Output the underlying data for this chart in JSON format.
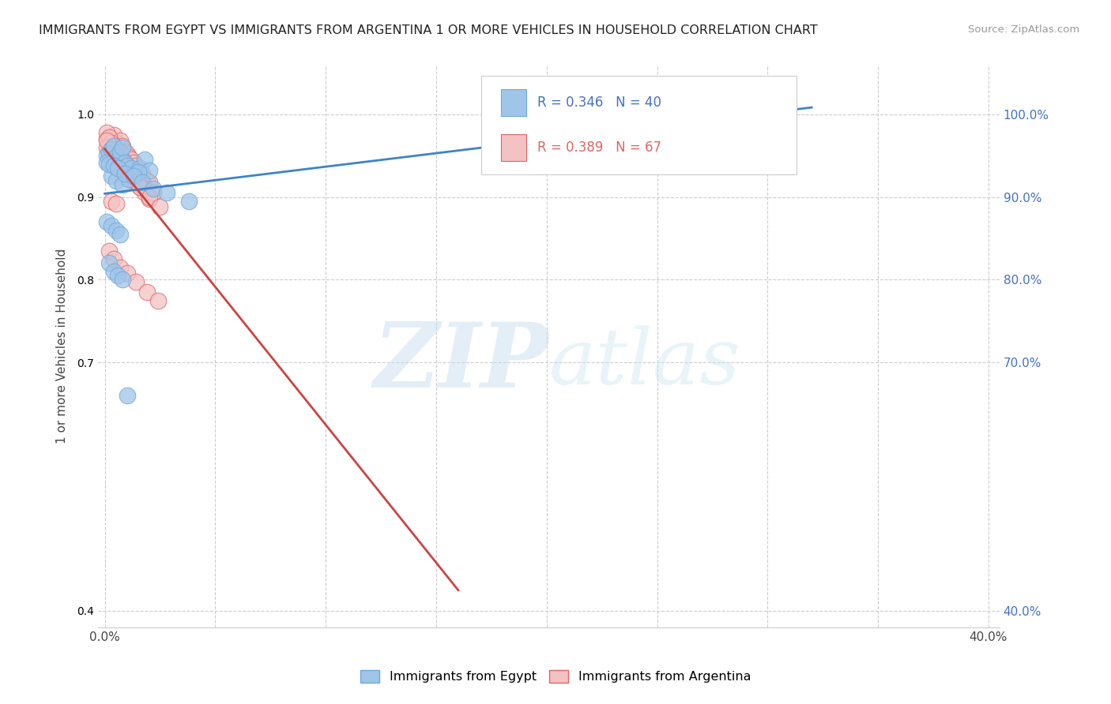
{
  "title": "IMMIGRANTS FROM EGYPT VS IMMIGRANTS FROM ARGENTINA 1 OR MORE VEHICLES IN HOUSEHOLD CORRELATION CHART",
  "source": "Source: ZipAtlas.com",
  "ylabel": "1 or more Vehicles in Household",
  "xlim": [
    -0.003,
    0.405
  ],
  "ylim": [
    0.38,
    1.06
  ],
  "xticks": [
    0.0,
    0.05,
    0.1,
    0.15,
    0.2,
    0.25,
    0.3,
    0.35,
    0.4
  ],
  "xticklabels": [
    "0.0%",
    "",
    "",
    "",
    "",
    "",
    "",
    "",
    "40.0%"
  ],
  "yticks": [
    0.4,
    0.7,
    0.8,
    0.9,
    1.0
  ],
  "yticklabels": [
    "40.0%",
    "70.0%",
    "80.0%",
    "90.0%",
    "100.0%"
  ],
  "egypt_color": "#9fc5e8",
  "egypt_edge": "#6fa8dc",
  "argentina_color": "#f4c2c2",
  "argentina_edge": "#e06666",
  "egypt_R": 0.346,
  "egypt_N": 40,
  "argentina_R": 0.389,
  "argentina_N": 67,
  "egypt_line_color": "#3d85c8",
  "argentina_line_color": "#cc4444",
  "legend_egypt": "Immigrants from Egypt",
  "legend_argentina": "Immigrants from Argentina",
  "watermark_zip": "ZIP",
  "watermark_atlas": "atlas",
  "egypt_x": [
    0.001,
    0.002,
    0.003,
    0.004,
    0.005,
    0.006,
    0.007,
    0.008,
    0.009,
    0.01,
    0.012,
    0.014,
    0.016,
    0.018,
    0.02,
    0.003,
    0.005,
    0.008,
    0.011,
    0.015,
    0.001,
    0.002,
    0.004,
    0.006,
    0.009,
    0.013,
    0.017,
    0.022,
    0.028,
    0.038,
    0.001,
    0.003,
    0.005,
    0.007,
    0.002,
    0.004,
    0.006,
    0.008,
    0.295,
    0.01
  ],
  "egypt_y": [
    0.95,
    0.952,
    0.958,
    0.962,
    0.948,
    0.944,
    0.955,
    0.96,
    0.942,
    0.938,
    0.935,
    0.928,
    0.935,
    0.945,
    0.932,
    0.925,
    0.92,
    0.915,
    0.922,
    0.93,
    0.942,
    0.94,
    0.938,
    0.935,
    0.928,
    0.925,
    0.918,
    0.91,
    0.905,
    0.895,
    0.87,
    0.865,
    0.86,
    0.855,
    0.82,
    0.81,
    0.805,
    0.8,
    1.001,
    0.66
  ],
  "argentina_x": [
    0.001,
    0.002,
    0.003,
    0.004,
    0.005,
    0.006,
    0.007,
    0.008,
    0.009,
    0.01,
    0.011,
    0.012,
    0.013,
    0.014,
    0.015,
    0.016,
    0.017,
    0.018,
    0.019,
    0.02,
    0.001,
    0.002,
    0.003,
    0.004,
    0.005,
    0.006,
    0.007,
    0.008,
    0.009,
    0.01,
    0.011,
    0.012,
    0.013,
    0.014,
    0.015,
    0.016,
    0.018,
    0.02,
    0.003,
    0.005,
    0.001,
    0.002,
    0.004,
    0.006,
    0.008,
    0.01,
    0.012,
    0.015,
    0.018,
    0.022,
    0.001,
    0.003,
    0.005,
    0.007,
    0.009,
    0.011,
    0.013,
    0.016,
    0.02,
    0.025,
    0.002,
    0.004,
    0.007,
    0.01,
    0.014,
    0.019,
    0.024
  ],
  "argentina_y": [
    0.97,
    0.972,
    0.968,
    0.975,
    0.965,
    0.96,
    0.968,
    0.962,
    0.955,
    0.952,
    0.948,
    0.945,
    0.942,
    0.938,
    0.934,
    0.93,
    0.928,
    0.922,
    0.92,
    0.918,
    0.978,
    0.972,
    0.965,
    0.962,
    0.958,
    0.952,
    0.948,
    0.944,
    0.94,
    0.935,
    0.932,
    0.928,
    0.924,
    0.92,
    0.916,
    0.912,
    0.905,
    0.898,
    0.895,
    0.892,
    0.96,
    0.955,
    0.948,
    0.942,
    0.938,
    0.932,
    0.925,
    0.918,
    0.91,
    0.905,
    0.968,
    0.958,
    0.95,
    0.942,
    0.935,
    0.928,
    0.92,
    0.912,
    0.9,
    0.888,
    0.835,
    0.825,
    0.815,
    0.808,
    0.798,
    0.785,
    0.775
  ]
}
